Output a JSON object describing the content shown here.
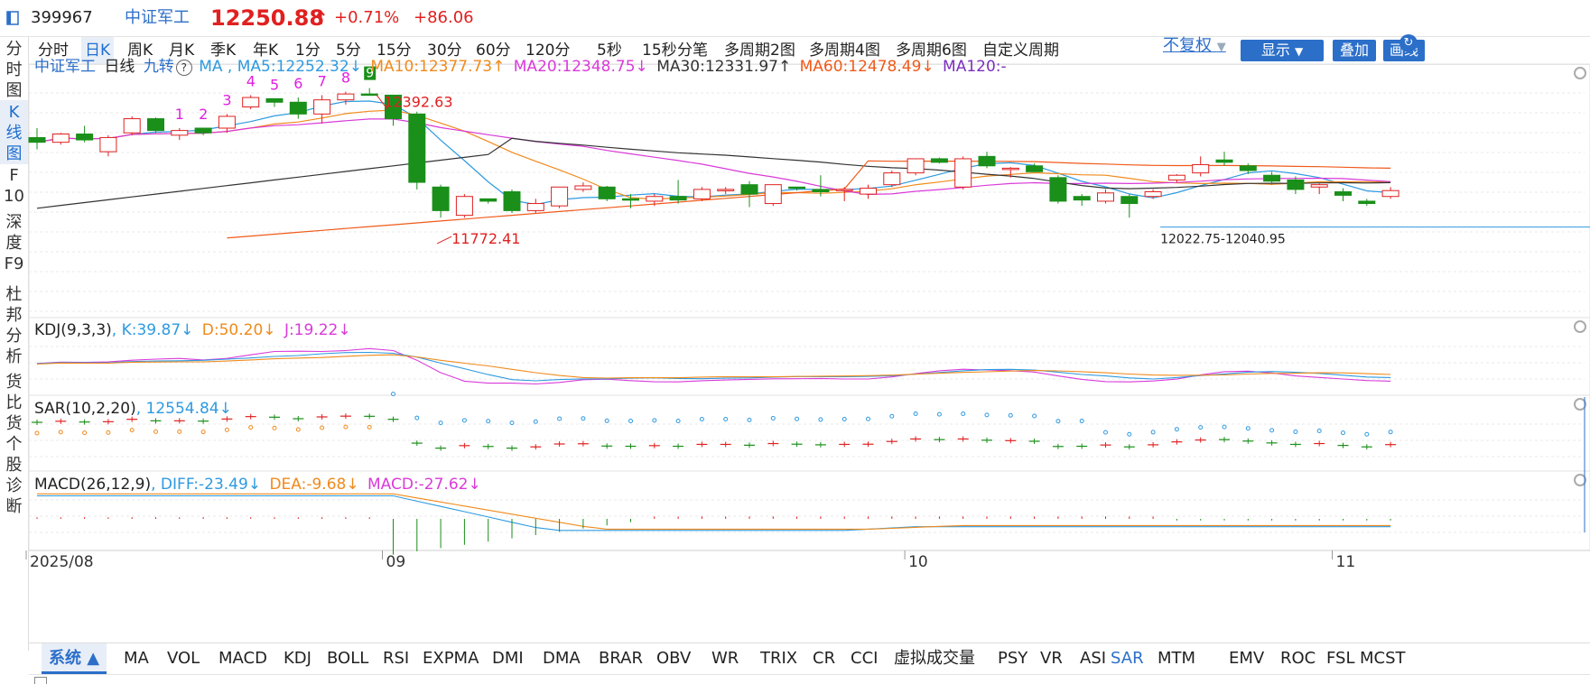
{
  "colors": {
    "up": "#e02020",
    "down": "#1a8f1a",
    "blue": "#2c6fc9",
    "ma5": "#2e9ae0",
    "ma10": "#f08a1c",
    "ma20": "#d93ad9",
    "ma30": "#333333",
    "ma60": "#f05a1a",
    "ma120": "#7b2fbf",
    "nine": "#e020e0"
  },
  "header": {
    "code": "399967",
    "name": "中证军工",
    "price": "12250.88",
    "arrow": "↑",
    "change_pct": "+0.71%",
    "change_val": "+86.06"
  },
  "periods": [
    "分时",
    "日K",
    "周K",
    "月K",
    "季K",
    "年K",
    "1分",
    "5分",
    "15分",
    "30分",
    "60分",
    "120分",
    "5秒",
    "15秒",
    "分笔",
    "多周期2图",
    "多周期4图",
    "多周期6图",
    "自定义周期"
  ],
  "active_period": "日K",
  "right_controls": {
    "adjust": "不复权",
    "show": "显示",
    "overlay": "叠加",
    "draw": "画线"
  },
  "leftnav": [
    {
      "label": "分时图",
      "chars": [
        "分",
        "时",
        "图"
      ]
    },
    {
      "label": "K线图",
      "chars": [
        "K",
        "线",
        "图"
      ]
    },
    {
      "label": "F10",
      "chars": [
        "F",
        "10"
      ]
    },
    {
      "label": "深度F9",
      "chars": [
        "深",
        "度",
        "F9"
      ]
    },
    {
      "label": "杜邦分析",
      "chars": [
        "杜",
        "邦",
        "分",
        "析"
      ]
    },
    {
      "label": "货比货",
      "chars": [
        "货",
        "比",
        "货"
      ]
    },
    {
      "label": "个股诊断",
      "chars": [
        "个",
        "股",
        "诊",
        "断"
      ]
    }
  ],
  "main_legend": {
    "name": "中证军工",
    "period": "日线",
    "nine": "九转",
    "question": "?",
    "ma": "MA ,",
    "ma5": "MA5:12252.32↓",
    "ma10": "MA10:12377.73↑",
    "ma20": "MA20:12348.75↓",
    "ma30": "MA30:12331.97↑",
    "ma60": "MA60:12478.49↓",
    "ma120": "MA120:-"
  },
  "annotations": {
    "high": "12392.63",
    "low": "11772.41",
    "range": "12022.75-12040.95"
  },
  "nine_labels": [
    "1",
    "2",
    "3",
    "4",
    "5",
    "6",
    "7",
    "8",
    "9"
  ],
  "kdj": {
    "title": "KDJ(9,3,3)",
    "k": ", K:39.87↓",
    "d": "D:50.20↓",
    "j": "J:19.22↓"
  },
  "sar": {
    "title": "SAR(10,2,20)",
    "v": ", 12554.84↓"
  },
  "macd": {
    "title": "MACD(26,12,9)",
    "diff": ", DIFF:-23.49↓",
    "dea": "DEA:-9.68↓",
    "macd": "MACD:-27.62↓"
  },
  "time_axis": [
    {
      "label": "2025/08",
      "i": 0
    },
    {
      "label": "09",
      "i": 15
    },
    {
      "label": "10",
      "i": 37
    },
    {
      "label": "11",
      "i": 55
    }
  ],
  "indicator_tabs": [
    "系统 ▲",
    "MA",
    "VOL",
    "MACD",
    "KDJ",
    "BOLL",
    "RSI",
    "EXPMA",
    "DMI",
    "DMA",
    "BRAR",
    "OBV",
    "WR",
    "TRIX",
    "CR",
    "CCI",
    "虚拟成交量",
    "PSY",
    "VR",
    "ASI",
    "SAR",
    "MTM",
    "EMV",
    "ROC",
    "FSL",
    "MCST"
  ],
  "active_tab": "系统 ▲",
  "highlight_tab": "SAR",
  "chart_data": {
    "type": "candlestick",
    "price_range": [
      11700,
      12600
    ],
    "candles": [
      {
        "o": 12380,
        "h": 12420,
        "l": 12330,
        "c": 12360
      },
      {
        "o": 12360,
        "h": 12400,
        "l": 12350,
        "c": 12395
      },
      {
        "o": 12395,
        "h": 12430,
        "l": 12360,
        "c": 12370
      },
      {
        "o": 12320,
        "h": 12390,
        "l": 12300,
        "c": 12380
      },
      {
        "o": 12400,
        "h": 12470,
        "l": 12390,
        "c": 12460
      },
      {
        "o": 12460,
        "h": 12465,
        "l": 12400,
        "c": 12410
      },
      {
        "o": 12390,
        "h": 12420,
        "l": 12370,
        "c": 12410
      },
      {
        "o": 12420,
        "h": 12420,
        "l": 12390,
        "c": 12400
      },
      {
        "o": 12420,
        "h": 12480,
        "l": 12400,
        "c": 12470
      },
      {
        "o": 12510,
        "h": 12560,
        "l": 12500,
        "c": 12550
      },
      {
        "o": 12545,
        "h": 12545,
        "l": 12510,
        "c": 12530
      },
      {
        "o": 12530,
        "h": 12550,
        "l": 12460,
        "c": 12480
      },
      {
        "o": 12480,
        "h": 12560,
        "l": 12440,
        "c": 12540
      },
      {
        "o": 12540,
        "h": 12575,
        "l": 12520,
        "c": 12565
      },
      {
        "o": 12565,
        "h": 12590,
        "l": 12560,
        "c": 12560
      },
      {
        "o": 12560,
        "h": 12560,
        "l": 12430,
        "c": 12460
      },
      {
        "o": 12480,
        "h": 12490,
        "l": 12160,
        "c": 12190
      },
      {
        "o": 12170,
        "h": 12180,
        "l": 12040,
        "c": 12070
      },
      {
        "o": 12050,
        "h": 12140,
        "l": 12040,
        "c": 12130
      },
      {
        "o": 12120,
        "h": 12120,
        "l": 12100,
        "c": 12110
      },
      {
        "o": 12150,
        "h": 12160,
        "l": 12060,
        "c": 12070
      },
      {
        "o": 12070,
        "h": 12120,
        "l": 12060,
        "c": 12100
      },
      {
        "o": 12090,
        "h": 12170,
        "l": 12080,
        "c": 12170
      },
      {
        "o": 12160,
        "h": 12190,
        "l": 12150,
        "c": 12175
      },
      {
        "o": 12170,
        "h": 12175,
        "l": 12110,
        "c": 12120
      },
      {
        "o": 12120,
        "h": 12140,
        "l": 12080,
        "c": 12115
      },
      {
        "o": 12110,
        "h": 12140,
        "l": 12090,
        "c": 12130
      },
      {
        "o": 12130,
        "h": 12200,
        "l": 12100,
        "c": 12115
      },
      {
        "o": 12120,
        "h": 12170,
        "l": 12110,
        "c": 12160
      },
      {
        "o": 12160,
        "h": 12170,
        "l": 12140,
        "c": 12160
      },
      {
        "o": 12180,
        "h": 12195,
        "l": 12085,
        "c": 12140
      },
      {
        "o": 12100,
        "h": 12180,
        "l": 12090,
        "c": 12180
      },
      {
        "o": 12170,
        "h": 12170,
        "l": 12155,
        "c": 12165
      },
      {
        "o": 12160,
        "h": 12220,
        "l": 12130,
        "c": 12150
      },
      {
        "o": 12160,
        "h": 12170,
        "l": 12110,
        "c": 12160
      },
      {
        "o": 12140,
        "h": 12180,
        "l": 12120,
        "c": 12165
      },
      {
        "o": 12180,
        "h": 12240,
        "l": 12170,
        "c": 12230
      },
      {
        "o": 12230,
        "h": 12290,
        "l": 12220,
        "c": 12290
      },
      {
        "o": 12290,
        "h": 12295,
        "l": 12270,
        "c": 12275
      },
      {
        "o": 12170,
        "h": 12300,
        "l": 12160,
        "c": 12290
      },
      {
        "o": 12300,
        "h": 12320,
        "l": 12250,
        "c": 12260
      },
      {
        "o": 12250,
        "h": 12255,
        "l": 12210,
        "c": 12250
      },
      {
        "o": 12260,
        "h": 12270,
        "l": 12240,
        "c": 12235
      },
      {
        "o": 12210,
        "h": 12220,
        "l": 12100,
        "c": 12110
      },
      {
        "o": 12130,
        "h": 12140,
        "l": 12090,
        "c": 12115
      },
      {
        "o": 12110,
        "h": 12160,
        "l": 12100,
        "c": 12145
      },
      {
        "o": 12130,
        "h": 12140,
        "l": 12040,
        "c": 12100
      },
      {
        "o": 12130,
        "h": 12160,
        "l": 12120,
        "c": 12150
      },
      {
        "o": 12200,
        "h": 12225,
        "l": 12190,
        "c": 12220
      },
      {
        "o": 12230,
        "h": 12300,
        "l": 12215,
        "c": 12265
      },
      {
        "o": 12285,
        "h": 12320,
        "l": 12260,
        "c": 12275
      },
      {
        "o": 12260,
        "h": 12270,
        "l": 12225,
        "c": 12240
      },
      {
        "o": 12220,
        "h": 12235,
        "l": 12180,
        "c": 12195
      },
      {
        "o": 12200,
        "h": 12215,
        "l": 12140,
        "c": 12160
      },
      {
        "o": 12170,
        "h": 12185,
        "l": 12140,
        "c": 12180
      },
      {
        "o": 12150,
        "h": 12165,
        "l": 12110,
        "c": 12135
      },
      {
        "o": 12110,
        "h": 12120,
        "l": 12090,
        "c": 12100
      },
      {
        "o": 12130,
        "h": 12170,
        "l": 12120,
        "c": 12155
      }
    ]
  }
}
